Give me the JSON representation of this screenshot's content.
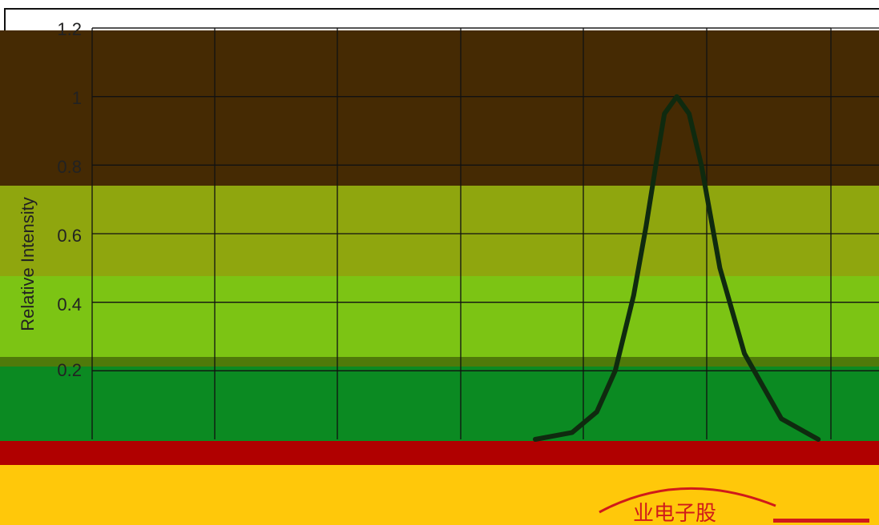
{
  "chart_data": {
    "type": "line",
    "ylabel": "Relative Intensity",
    "y_ticks": [
      "1.2",
      "1",
      "0.8",
      "0.6",
      "0.4",
      "0.2"
    ],
    "ylim": [
      0,
      1.2
    ],
    "xlim": [
      0,
      7
    ],
    "grid": true,
    "series": [
      {
        "color": "#0f2a0f",
        "x": [
          3.6,
          3.9,
          4.1,
          4.25,
          4.4,
          4.5,
          4.58,
          4.65,
          4.75,
          4.85,
          4.95,
          5.1,
          5.3,
          5.6,
          5.9
        ],
        "y": [
          0.0,
          0.02,
          0.08,
          0.2,
          0.42,
          0.62,
          0.8,
          0.95,
          1.0,
          0.95,
          0.8,
          0.5,
          0.25,
          0.06,
          0.0
        ]
      }
    ]
  },
  "seal": {
    "text": "业电子股"
  },
  "colors": {
    "band_brown": "#452a03",
    "band_olive": "#8fa60e",
    "band_lime": "#7cc414",
    "band_green": "#0b8a22",
    "band_red": "#b00000",
    "band_yellow": "#ffc80a",
    "line": "#0f2a0f",
    "grid": "#111111"
  }
}
